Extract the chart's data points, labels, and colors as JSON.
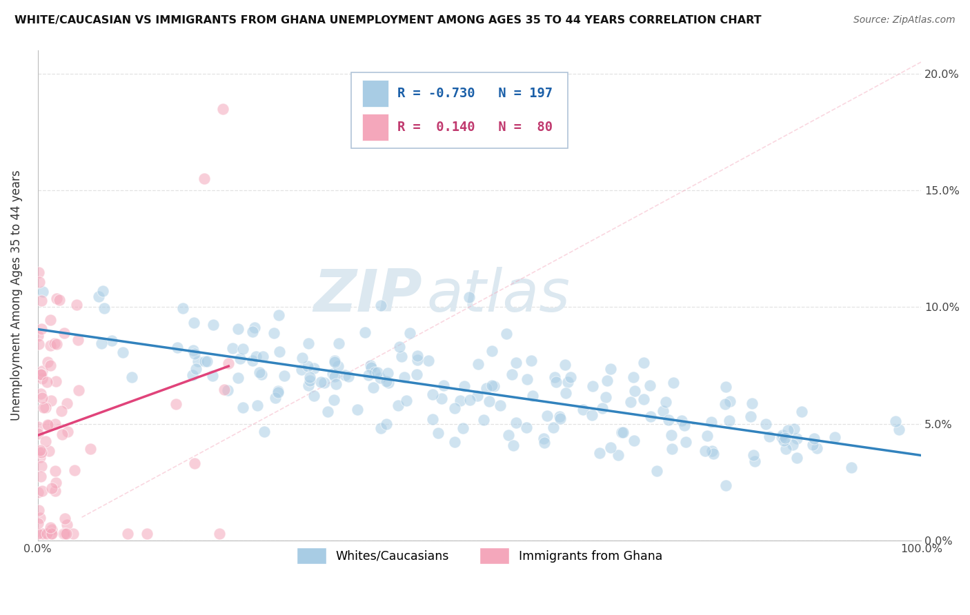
{
  "title": "WHITE/CAUCASIAN VS IMMIGRANTS FROM GHANA UNEMPLOYMENT AMONG AGES 35 TO 44 YEARS CORRELATION CHART",
  "source": "Source: ZipAtlas.com",
  "ylabel": "Unemployment Among Ages 35 to 44 years",
  "xlim": [
    0.0,
    1.0
  ],
  "ylim": [
    0.0,
    0.21
  ],
  "x_ticks": [
    0.0,
    0.1,
    0.2,
    0.3,
    0.4,
    0.5,
    0.6,
    0.7,
    0.8,
    0.9,
    1.0
  ],
  "x_tick_labels": [
    "0.0%",
    "",
    "",
    "",
    "",
    "",
    "",
    "",
    "",
    "",
    "100.0%"
  ],
  "y_ticks": [
    0.0,
    0.05,
    0.1,
    0.15,
    0.2
  ],
  "y_tick_labels_left": [
    "",
    "",
    "",
    "",
    ""
  ],
  "y_tick_labels_right": [
    "0.0%",
    "5.0%",
    "10.0%",
    "15.0%",
    "20.0%"
  ],
  "legend1_label": "Whites/Caucasians",
  "legend2_label": "Immigrants from Ghana",
  "R_blue": -0.73,
  "N_blue": 197,
  "R_pink": 0.14,
  "N_pink": 80,
  "blue_color": "#a8cce4",
  "pink_color": "#f4a7bb",
  "blue_line_color": "#3182bd",
  "pink_line_color": "#e0437a",
  "dashed_line_color": "#f4a7bb",
  "watermark_zip": "ZIP",
  "watermark_atlas": "atlas",
  "watermark_color": "#dce8f0",
  "background_color": "#ffffff",
  "grid_color": "#dddddd",
  "seed": 123
}
